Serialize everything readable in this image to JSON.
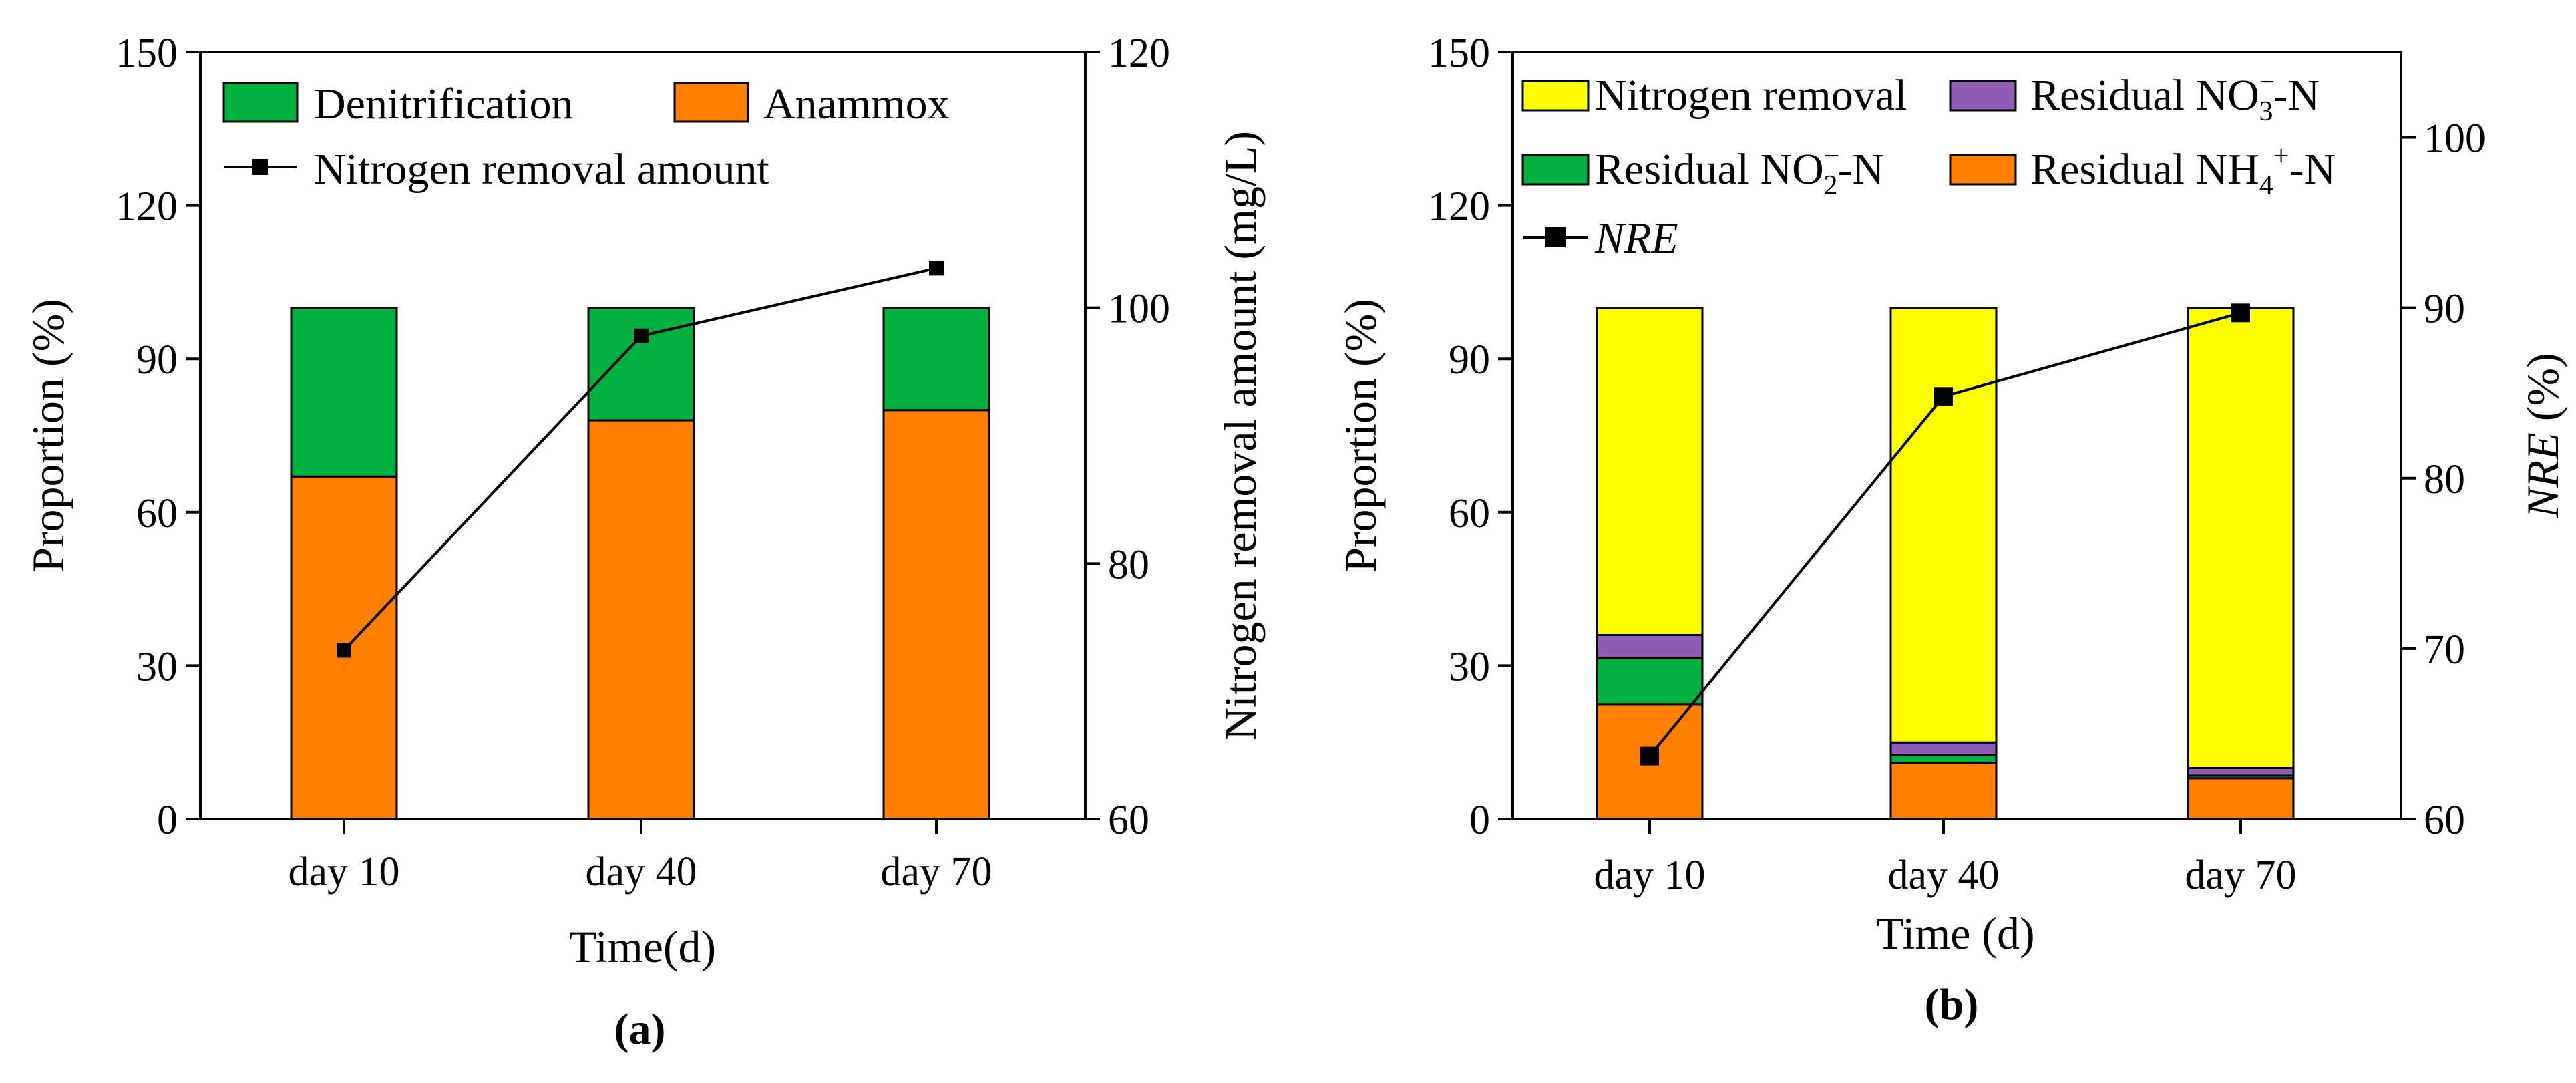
{
  "chart_data": [
    {
      "type": "bar+line",
      "panel_label": "(a)",
      "categories": [
        "day 10",
        "day 40",
        "day 70"
      ],
      "xlabel": "Time(d)",
      "ylabel": "Proportion (%)",
      "ylabel_right": "Nitrogen removal  amount (mg/L)",
      "ylim": [
        0,
        150
      ],
      "yticks": [
        "0",
        "30",
        "60",
        "90",
        "120",
        "150"
      ],
      "ylim_right": [
        60,
        120
      ],
      "yticks_right": [
        "60",
        "80",
        "100",
        "120"
      ],
      "series": [
        {
          "name": "Anammox",
          "kind": "stacked-bar",
          "color": "#ff8000",
          "values": [
            67,
            78,
            80
          ]
        },
        {
          "name": "Denitrification",
          "kind": "stacked-bar",
          "color": "#00b140",
          "values": [
            33,
            22,
            20
          ]
        },
        {
          "name": "Nitrogen removal amount",
          "kind": "line",
          "axis": "right",
          "color": "#000000",
          "values": [
            73.2,
            97.8,
            103.1
          ]
        }
      ],
      "legend": [
        "Denitrification",
        "Anammox",
        "Nitrogen removal amount"
      ]
    },
    {
      "type": "bar+line",
      "panel_label": "(b)",
      "categories": [
        "day 10",
        "day 40",
        "day 70"
      ],
      "xlabel": "Time (d)",
      "ylabel": "Proportion (%)",
      "ylabel_right": "NRE (%)",
      "ylim": [
        0,
        150
      ],
      "yticks": [
        "0",
        "30",
        "60",
        "90",
        "120",
        "150"
      ],
      "ylim_right": [
        60,
        105
      ],
      "yticks_right": [
        "60",
        "70",
        "80",
        "90",
        "100"
      ],
      "series": [
        {
          "name": "Residual NH4+-N",
          "kind": "stacked-bar",
          "color": "#ff8000",
          "values": [
            22.5,
            11,
            8
          ]
        },
        {
          "name": "Residual NO2−-N",
          "kind": "stacked-bar",
          "color": "#00b140",
          "values": [
            9,
            1.5,
            0.5
          ]
        },
        {
          "name": "Residual NO3−-N",
          "kind": "stacked-bar",
          "color": "#8e5cb5",
          "values": [
            4.5,
            2.5,
            1.5
          ]
        },
        {
          "name": "Nitrogen removal",
          "kind": "stacked-bar",
          "color": "#ffff00",
          "values": [
            64,
            85,
            90
          ]
        },
        {
          "name": "NRE",
          "kind": "line",
          "axis": "right",
          "color": "#000000",
          "values": [
            63.7,
            84.8,
            89.7
          ]
        }
      ],
      "legend": [
        "Nitrogen removal",
        "Residual NO3−-N",
        "Residual NO2−-N",
        "Residual NH4+-N",
        "NRE"
      ]
    }
  ],
  "legend_text": {
    "a_denit": "Denitrification",
    "a_anammox": "Anammox",
    "a_line": "Nitrogen removal amount",
    "b_nremoval": "Nitrogen removal",
    "b_no3_prefix": "Residual NO",
    "b_no3_sub": "3",
    "b_no3_sup": "−",
    "b_no3_suffix": "-N",
    "b_no2_prefix": "Residual NO",
    "b_no2_sub": "2",
    "b_no2_sup": "−",
    "b_no2_suffix": "-N",
    "b_nh4_prefix": "Residual NH",
    "b_nh4_sub": "4",
    "b_nh4_sup": "+",
    "b_nh4_suffix": "-N",
    "b_line": "NRE"
  },
  "colors": {
    "axis": "#000000",
    "line": "#000000"
  }
}
